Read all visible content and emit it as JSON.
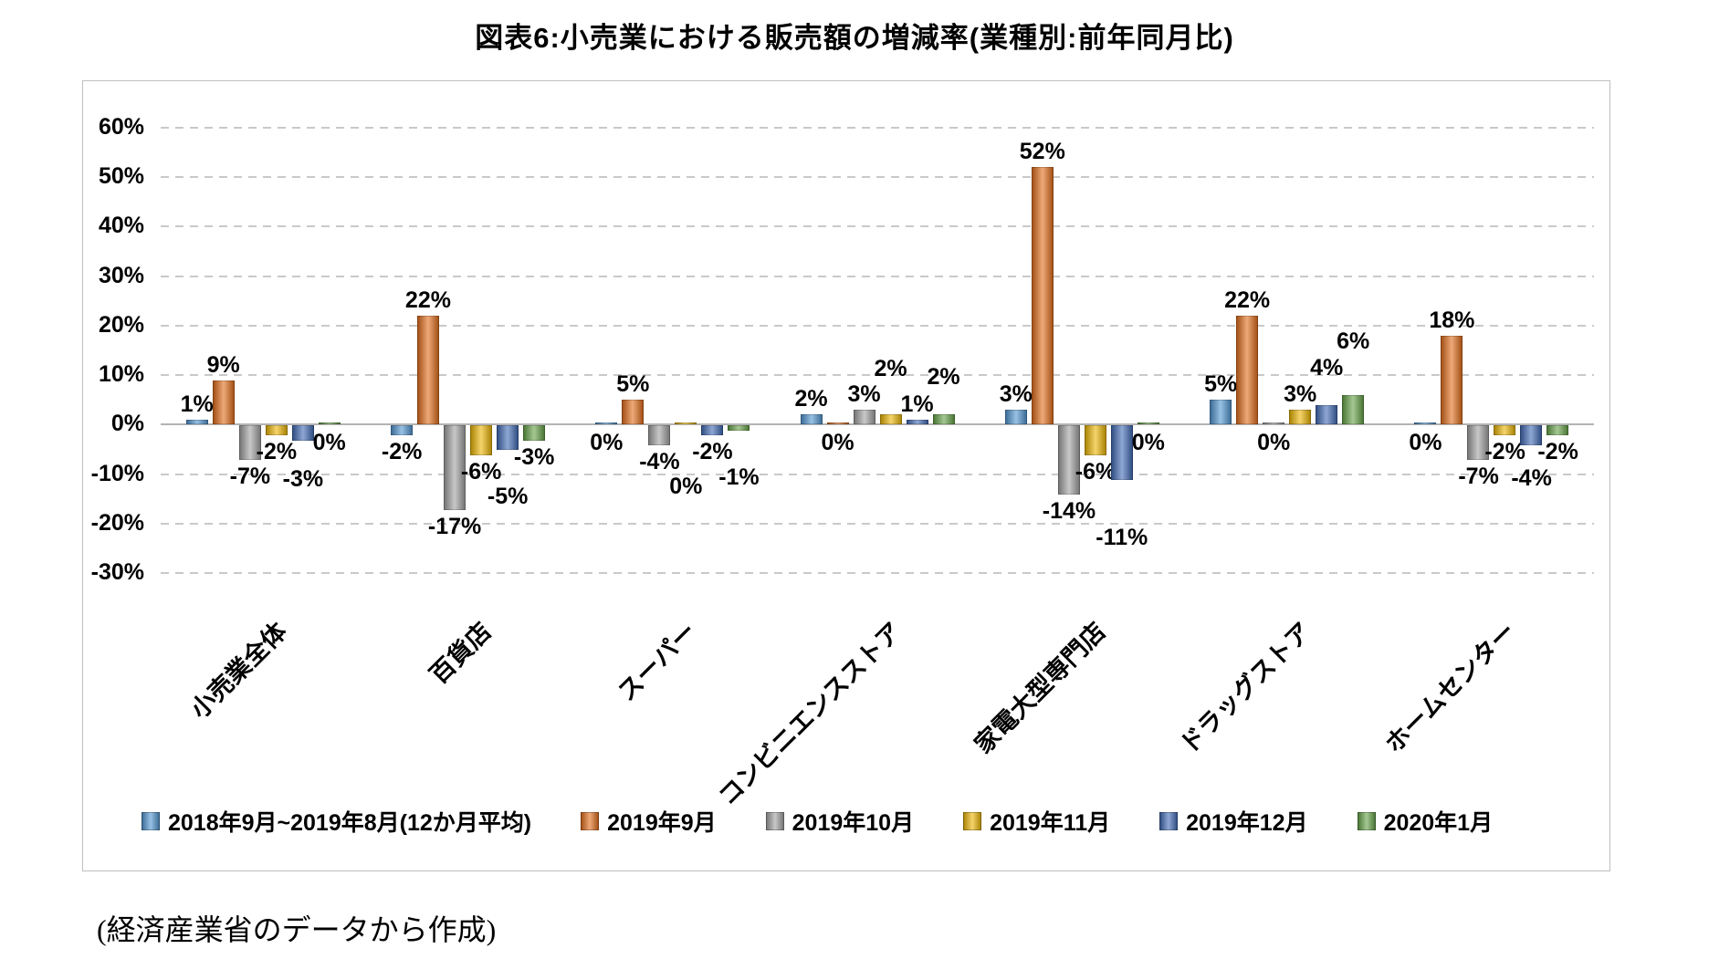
{
  "title": "図表6:小売業における販売額の増減率(業種別:前年同月比)",
  "source_note": "(経済産業省のデータから作成)",
  "chart_data": {
    "type": "bar",
    "title": "図表6:小売業における販売額の増減率(業種別:前年同月比)",
    "categories": [
      "小売業全体",
      "百貨店",
      "スーパー",
      "コンビニエンスストア",
      "家電大型専門店",
      "ドラッグストア",
      "ホームセンター"
    ],
    "series": [
      {
        "name": "2018年9月~2019年8月(12か月平均)",
        "color": "#4E94D0",
        "values": [
          1,
          -2,
          0,
          2,
          3,
          5,
          0
        ]
      },
      {
        "name": "2019年9月",
        "color": "#E16B17",
        "values": [
          9,
          22,
          5,
          0,
          52,
          22,
          18
        ]
      },
      {
        "name": "2019年10月",
        "color": "#A0A0A0",
        "values": [
          -7,
          -17,
          -4,
          3,
          -14,
          0,
          -7
        ]
      },
      {
        "name": "2019年11月",
        "color": "#EDB500",
        "values": [
          -2,
          -6,
          0,
          2,
          -6,
          3,
          -2
        ]
      },
      {
        "name": "2019年12月",
        "color": "#3E68B4",
        "values": [
          -3,
          -5,
          -2,
          1,
          -11,
          4,
          -4
        ]
      },
      {
        "name": "2020年1月",
        "color": "#63A144",
        "values": [
          0,
          -3,
          -1,
          2,
          0,
          6,
          -2
        ]
      }
    ],
    "xlabel": "",
    "ylabel": "",
    "ylim": [
      -30,
      60
    ],
    "ytick_step": 10,
    "ytick_suffix": "%",
    "value_label_format": "integer percent",
    "grid": "horizontal dashed",
    "legend_position": "bottom"
  }
}
